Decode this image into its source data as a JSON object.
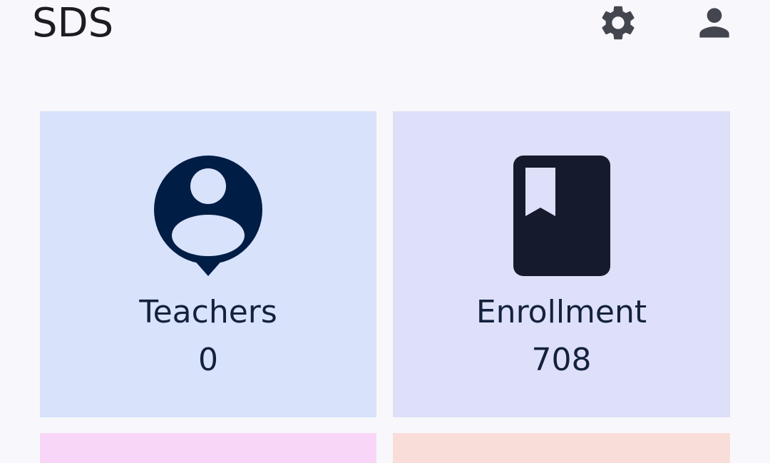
{
  "header": {
    "title": "SDS",
    "settings_icon": "gear-icon",
    "account_icon": "person-icon"
  },
  "cards": [
    {
      "label": "Teachers",
      "value": "0",
      "icon": "person-pin-icon",
      "bg": "#d8e2fb",
      "icon_color": "#001d45"
    },
    {
      "label": "Enrollment",
      "value": "708",
      "icon": "book-icon",
      "bg": "#dde0f8",
      "icon_color": "#151b2c"
    },
    {
      "label": "",
      "value": "",
      "bg": "#f8d6f8"
    },
    {
      "label": "",
      "value": "",
      "bg": "#f8ddd9"
    }
  ],
  "colors": {
    "background": "#f8f8fc",
    "header_icon": "#44464f",
    "text": "#14213d"
  }
}
